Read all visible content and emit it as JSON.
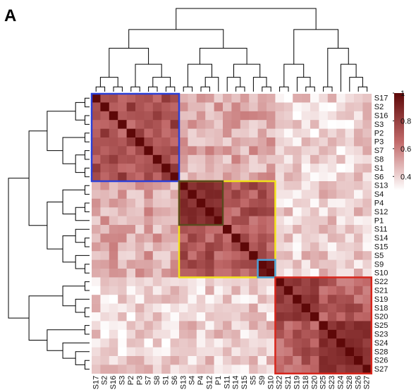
{
  "panel_label": "A",
  "chart_data": {
    "type": "heatmap",
    "title": "",
    "labels": [
      "S17",
      "S2",
      "S16",
      "S3",
      "P2",
      "P3",
      "S7",
      "S8",
      "S1",
      "S6",
      "S13",
      "S4",
      "P4",
      "S12",
      "P1",
      "S11",
      "S14",
      "S15",
      "S5",
      "S9",
      "S10",
      "S22",
      "S21",
      "S19",
      "S18",
      "S20",
      "S25",
      "S23",
      "S24",
      "S28",
      "S26",
      "S27"
    ],
    "color_range": [
      0.3,
      1
    ],
    "colorbar_ticks": [
      "1",
      "0.8",
      "0.6",
      "0.4"
    ],
    "colorbar_tick_values": [
      1,
      0.8,
      0.6,
      0.4
    ],
    "colors": {
      "low": "#ffffff",
      "high": "#6b0a0a",
      "mid": "#b94a4a"
    },
    "clusters": [
      {
        "from": "S17",
        "to": "S6",
        "color": "#2b3fd6"
      },
      {
        "from": "S13",
        "to": "S10",
        "color": "#f2e21a"
      },
      {
        "from": "S13",
        "to": "P1",
        "color": "#5a4a1e"
      },
      {
        "from": "S9",
        "to": "S10",
        "color": "#4aa0d8"
      },
      {
        "from": "S22",
        "to": "S27",
        "color": "#d8261c"
      }
    ],
    "group_mean": [
      [
        0.74,
        0.5,
        0.4
      ],
      [
        0.5,
        0.72,
        0.42
      ],
      [
        0.4,
        0.42,
        0.7
      ]
    ],
    "groups": [
      [
        0,
        9
      ],
      [
        10,
        20
      ],
      [
        21,
        31
      ]
    ],
    "dendrogram": "hierarchical clustering of samples (row and column)"
  }
}
